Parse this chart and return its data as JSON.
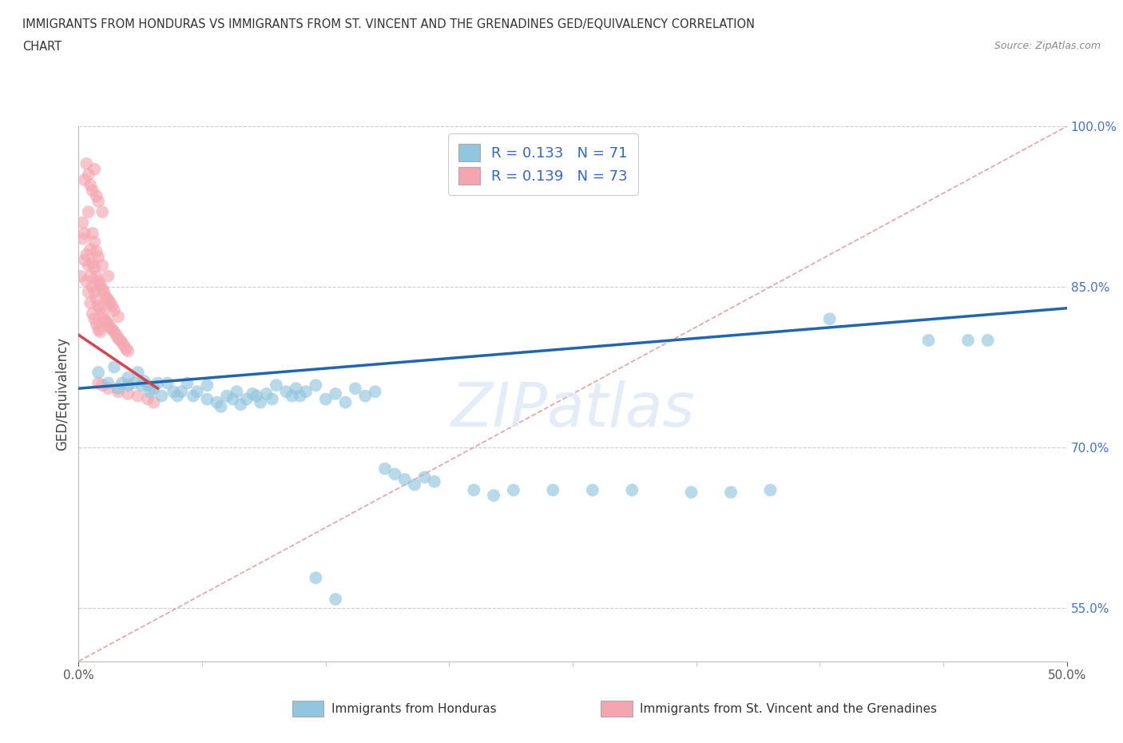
{
  "title_line1": "IMMIGRANTS FROM HONDURAS VS IMMIGRANTS FROM ST. VINCENT AND THE GRENADINES GED/EQUIVALENCY CORRELATION",
  "title_line2": "CHART",
  "source": "Source: ZipAtlas.com",
  "ylabel": "GED/Equivalency",
  "xlim": [
    0.0,
    0.5
  ],
  "ylim": [
    0.5,
    1.0
  ],
  "xtick_labels": [
    "0.0%",
    "50.0%"
  ],
  "ytick_labels": [
    "100.0%",
    "85.0%",
    "70.0%",
    "55.0%"
  ],
  "ytick_vals": [
    1.0,
    0.85,
    0.7,
    0.55
  ],
  "xtick_vals": [
    0.0,
    0.5
  ],
  "legend_r1": "R = 0.133",
  "legend_n1": "N = 71",
  "legend_r2": "R = 0.139",
  "legend_n2": "N = 73",
  "blue_color": "#92c5de",
  "pink_color": "#f4a6b0",
  "blue_line_color": "#2166ac",
  "pink_line_color": "#d6434f",
  "ref_line_color": "#e8a0a8",
  "watermark": "ZIPatlas",
  "blue_x": [
    0.01,
    0.015,
    0.018,
    0.02,
    0.022,
    0.025,
    0.025,
    0.028,
    0.03,
    0.032,
    0.033,
    0.035,
    0.036,
    0.038,
    0.04,
    0.042,
    0.045,
    0.048,
    0.05,
    0.052,
    0.055,
    0.058,
    0.06,
    0.065,
    0.065,
    0.07,
    0.072,
    0.075,
    0.078,
    0.08,
    0.082,
    0.085,
    0.088,
    0.09,
    0.092,
    0.095,
    0.098,
    0.1,
    0.105,
    0.108,
    0.11,
    0.112,
    0.115,
    0.12,
    0.125,
    0.13,
    0.135,
    0.14,
    0.145,
    0.15,
    0.155,
    0.16,
    0.165,
    0.17,
    0.175,
    0.18,
    0.2,
    0.21,
    0.22,
    0.24,
    0.26,
    0.28,
    0.31,
    0.33,
    0.35,
    0.38,
    0.43,
    0.45,
    0.46,
    0.12,
    0.13
  ],
  "blue_y": [
    0.77,
    0.76,
    0.775,
    0.755,
    0.76,
    0.765,
    0.758,
    0.76,
    0.77,
    0.758,
    0.762,
    0.758,
    0.752,
    0.755,
    0.76,
    0.748,
    0.76,
    0.752,
    0.748,
    0.752,
    0.76,
    0.748,
    0.752,
    0.758,
    0.745,
    0.742,
    0.738,
    0.748,
    0.745,
    0.752,
    0.74,
    0.745,
    0.75,
    0.748,
    0.742,
    0.75,
    0.745,
    0.758,
    0.752,
    0.748,
    0.755,
    0.748,
    0.752,
    0.758,
    0.745,
    0.75,
    0.742,
    0.755,
    0.748,
    0.752,
    0.68,
    0.675,
    0.67,
    0.665,
    0.672,
    0.668,
    0.66,
    0.655,
    0.66,
    0.66,
    0.66,
    0.66,
    0.658,
    0.658,
    0.66,
    0.82,
    0.8,
    0.8,
    0.8,
    0.578,
    0.558
  ],
  "pink_x": [
    0.001,
    0.002,
    0.002,
    0.003,
    0.003,
    0.004,
    0.004,
    0.005,
    0.005,
    0.005,
    0.006,
    0.006,
    0.006,
    0.007,
    0.007,
    0.007,
    0.007,
    0.008,
    0.008,
    0.008,
    0.008,
    0.009,
    0.009,
    0.009,
    0.009,
    0.01,
    0.01,
    0.01,
    0.01,
    0.011,
    0.011,
    0.011,
    0.012,
    0.012,
    0.012,
    0.013,
    0.013,
    0.014,
    0.014,
    0.015,
    0.015,
    0.015,
    0.016,
    0.016,
    0.017,
    0.017,
    0.018,
    0.018,
    0.019,
    0.02,
    0.02,
    0.021,
    0.022,
    0.023,
    0.024,
    0.025,
    0.01,
    0.012,
    0.015,
    0.02,
    0.025,
    0.03,
    0.035,
    0.038,
    0.005,
    0.007,
    0.008,
    0.01,
    0.012,
    0.003,
    0.004,
    0.006,
    0.009
  ],
  "pink_y": [
    0.86,
    0.895,
    0.91,
    0.875,
    0.9,
    0.855,
    0.88,
    0.845,
    0.87,
    0.92,
    0.835,
    0.86,
    0.885,
    0.825,
    0.85,
    0.872,
    0.9,
    0.82,
    0.845,
    0.868,
    0.892,
    0.815,
    0.838,
    0.86,
    0.883,
    0.81,
    0.832,
    0.855,
    0.878,
    0.808,
    0.83,
    0.852,
    0.825,
    0.848,
    0.87,
    0.82,
    0.845,
    0.818,
    0.84,
    0.815,
    0.838,
    0.86,
    0.812,
    0.835,
    0.81,
    0.832,
    0.808,
    0.828,
    0.805,
    0.802,
    0.822,
    0.8,
    0.798,
    0.795,
    0.792,
    0.79,
    0.76,
    0.758,
    0.755,
    0.752,
    0.75,
    0.748,
    0.745,
    0.742,
    0.955,
    0.94,
    0.96,
    0.93,
    0.92,
    0.95,
    0.965,
    0.945,
    0.935
  ],
  "blue_trend_x": [
    0.0,
    0.5
  ],
  "blue_trend_y": [
    0.755,
    0.83
  ],
  "pink_trend_x": [
    0.0,
    0.04
  ],
  "pink_trend_y": [
    0.805,
    0.755
  ]
}
